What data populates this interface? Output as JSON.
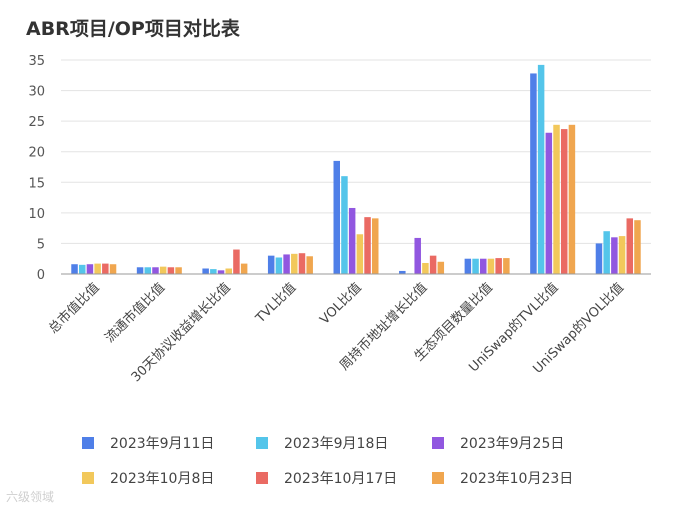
{
  "chart_data": {
    "type": "bar",
    "title": "ABR项目/OP项目对比表",
    "xlabel": "",
    "ylabel": "",
    "ylim": [
      0,
      35
    ],
    "yticks": [
      0,
      5,
      10,
      15,
      20,
      25,
      30,
      35
    ],
    "grid": true,
    "legend_position": "bottom",
    "categories": [
      "总市值比值",
      "流通市值比值",
      "30天协议收益增长比值",
      "TVL比值",
      "VOL比值",
      "周持币地址增长比值",
      "生态项目数量比值",
      "UniSwap的TVL比值",
      "UniSwap的VOL比值"
    ],
    "series": [
      {
        "name": "2023年9月11日",
        "color": "#4f7fe8",
        "values": [
          1.6,
          1.1,
          0.9,
          3.0,
          18.5,
          0.5,
          2.5,
          32.8,
          5.0
        ]
      },
      {
        "name": "2023年9月18日",
        "color": "#54c5ea",
        "values": [
          1.5,
          1.1,
          0.8,
          2.7,
          16.0,
          0.1,
          2.5,
          34.2,
          7.0
        ]
      },
      {
        "name": "2023年9月25日",
        "color": "#9157e0",
        "values": [
          1.6,
          1.1,
          0.6,
          3.2,
          10.8,
          5.9,
          2.5,
          23.1,
          6.0
        ]
      },
      {
        "name": "2023年10月8日",
        "color": "#f2c85b",
        "values": [
          1.7,
          1.2,
          0.9,
          3.3,
          6.5,
          1.8,
          2.5,
          24.4,
          6.2
        ]
      },
      {
        "name": "2023年10月17日",
        "color": "#ea6a63",
        "values": [
          1.7,
          1.1,
          4.0,
          3.4,
          9.3,
          3.0,
          2.6,
          23.7,
          9.1
        ]
      },
      {
        "name": "2023年10月23日",
        "color": "#f0a64f",
        "values": [
          1.6,
          1.1,
          1.7,
          2.9,
          9.1,
          2.0,
          2.6,
          24.4,
          8.8
        ]
      }
    ]
  },
  "watermark": "六级领域"
}
